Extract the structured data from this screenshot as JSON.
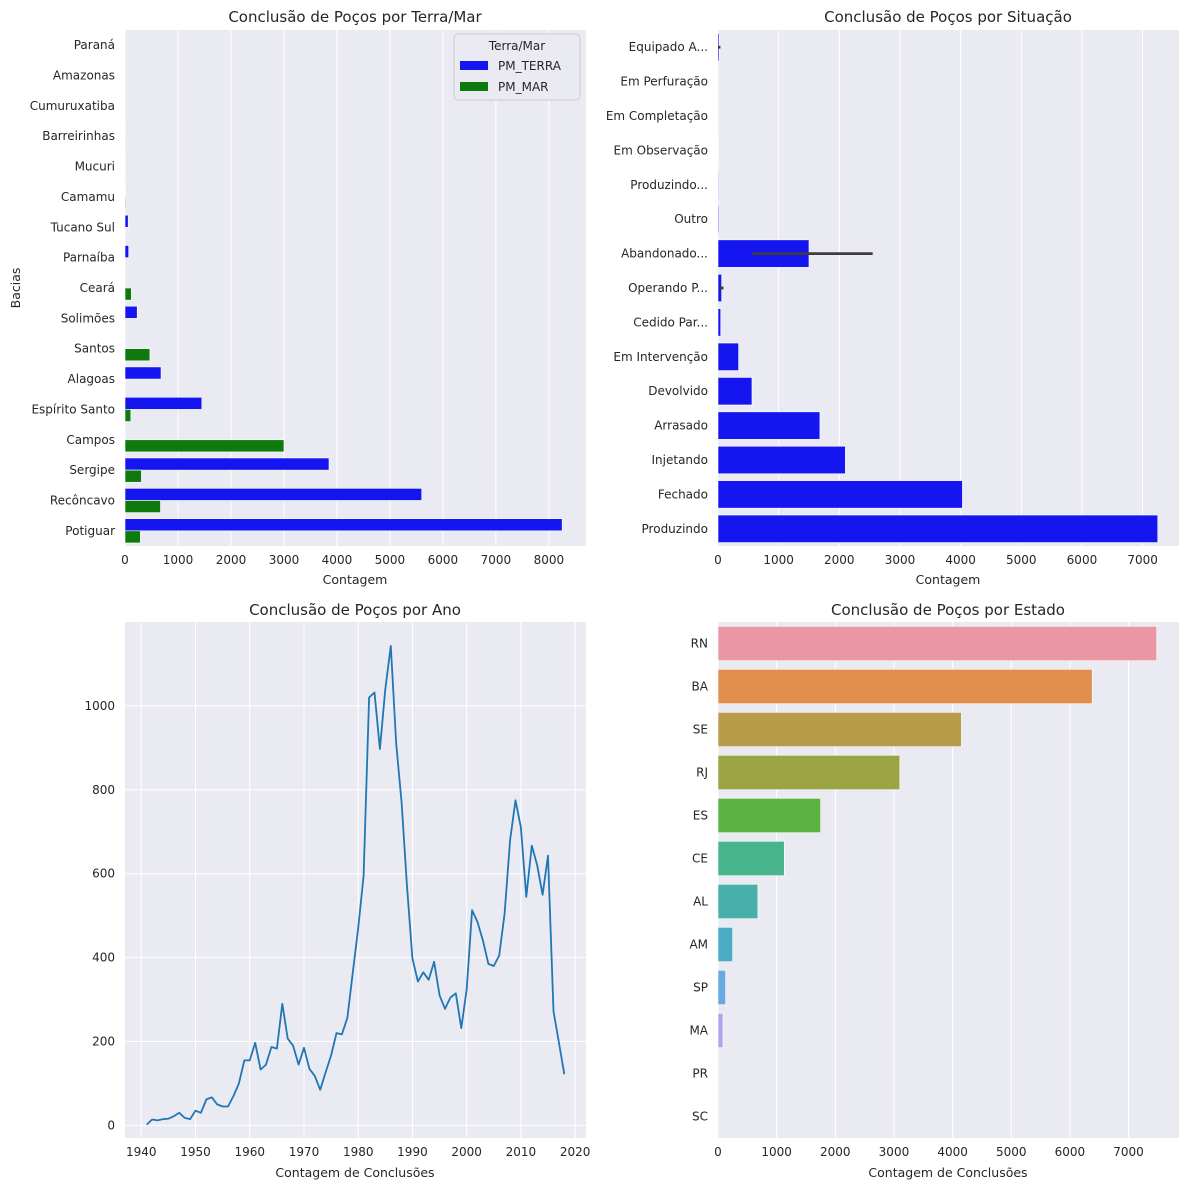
{
  "colors": {
    "terra": "#1515f0",
    "mar": "#0e7a0e",
    "situacao": "#1515f0",
    "errbar": "#3d3d3d",
    "line": "#1f77b4",
    "axes_bg": "#eaeaf2",
    "grid": "#ffffff"
  },
  "chart_data": [
    {
      "type": "bar",
      "orientation": "horizontal",
      "title": "Conclusão de Poços por Terra/Mar",
      "xlabel": "Contagem",
      "ylabel": "Bacias",
      "xlim": [
        0,
        8700
      ],
      "xticks": [
        0,
        1000,
        2000,
        3000,
        4000,
        5000,
        6000,
        7000,
        8000
      ],
      "grid": true,
      "legend": {
        "title": "Terra/Mar",
        "placement": "top-right"
      },
      "categories": [
        "Paraná",
        "Amazonas",
        "Cumuruxatiba",
        "Barreirinhas",
        "Mucuri",
        "Camamu",
        "Tucano Sul",
        "Parnaíba",
        "Ceará",
        "Solimões",
        "Santos",
        "Alagoas",
        "Espírito Santo",
        "Campos",
        "Sergipe",
        "Recôncavo",
        "Potiguar"
      ],
      "series": [
        {
          "name": "PM_TERRA",
          "values": [
            2,
            3,
            4,
            5,
            6,
            10,
            60,
            70,
            0,
            230,
            0,
            680,
            1450,
            0,
            3850,
            5600,
            8250
          ]
        },
        {
          "name": "PM_MAR",
          "values": [
            0,
            0,
            3,
            2,
            5,
            15,
            0,
            0,
            120,
            0,
            470,
            0,
            110,
            3000,
            310,
            670,
            290
          ]
        }
      ]
    },
    {
      "type": "bar",
      "orientation": "horizontal",
      "title": "Conclusão de Poços por Situação",
      "xlabel": "Contagem",
      "ylabel": "",
      "xlim": [
        0,
        7600
      ],
      "xticks": [
        0,
        1000,
        2000,
        3000,
        4000,
        5000,
        6000,
        7000
      ],
      "grid": true,
      "categories": [
        "Equipado A...",
        "Em Perfuração",
        "Em Completação",
        "Em Observação",
        "Produzindo...",
        "Outro",
        "Abandonado...",
        "Operando P...",
        "Cedido Par...",
        "Em Intervenção",
        "Devolvido",
        "Arrasado",
        "Injetando",
        "Fechado",
        "Produzindo"
      ],
      "values": [
        20,
        2,
        3,
        5,
        10,
        15,
        1500,
        60,
        45,
        340,
        560,
        1680,
        2100,
        4030,
        7250
      ],
      "error_bars": [
        [
          0,
          40
        ],
        null,
        null,
        null,
        null,
        null,
        [
          560,
          2550
        ],
        [
          30,
          90
        ],
        null,
        null,
        null,
        null,
        null,
        null,
        null
      ]
    },
    {
      "type": "line",
      "title": "Conclusão de Poços por Ano",
      "xlabel": "Contagem de Conclusões",
      "ylabel": "",
      "xlim": [
        1937,
        2022
      ],
      "ylim": [
        -30,
        1200
      ],
      "xticks": [
        1940,
        1950,
        1960,
        1970,
        1980,
        1990,
        2000,
        2010,
        2020
      ],
      "yticks": [
        0,
        200,
        400,
        600,
        800,
        1000
      ],
      "grid": true,
      "series": [
        {
          "x": [
            1941,
            1942,
            1943,
            1944,
            1945,
            1946,
            1947,
            1948,
            1949,
            1950,
            1951,
            1952,
            1953,
            1954,
            1955,
            1956,
            1957,
            1958,
            1959,
            1960,
            1961,
            1962,
            1963,
            1964,
            1965,
            1966,
            1967,
            1968,
            1969,
            1970,
            1971,
            1972,
            1973,
            1974,
            1975,
            1976,
            1977,
            1978,
            1979,
            1980,
            1981,
            1982,
            1983,
            1984,
            1985,
            1986,
            1987,
            1988,
            1989,
            1990,
            1991,
            1992,
            1993,
            1994,
            1995,
            1996,
            1997,
            1998,
            1999,
            2000,
            2001,
            2002,
            2003,
            2004,
            2005,
            2006,
            2007,
            2008,
            2009,
            2010,
            2011,
            2012,
            2013,
            2014,
            2015,
            2016,
            2017,
            2018
          ],
          "y": [
            2,
            14,
            12,
            15,
            16,
            22,
            30,
            18,
            15,
            35,
            30,
            62,
            67,
            50,
            45,
            45,
            70,
            100,
            155,
            155,
            197,
            133,
            145,
            187,
            183,
            290,
            207,
            190,
            145,
            185,
            135,
            118,
            85,
            127,
            167,
            220,
            217,
            257,
            365,
            470,
            595,
            1020,
            1032,
            897,
            1040,
            1143,
            910,
            770,
            570,
            398,
            343,
            365,
            347,
            390,
            310,
            278,
            305,
            315,
            232,
            325,
            513,
            485,
            440,
            385,
            380,
            405,
            505,
            680,
            775,
            710,
            545,
            667,
            620,
            550,
            643,
            272,
            198,
            122
          ]
        }
      ]
    },
    {
      "type": "bar",
      "orientation": "horizontal",
      "title": "Conclusão de Poços por Estado",
      "xlabel": "Contagem de Conclusões",
      "ylabel": "",
      "xlim": [
        0,
        7860
      ],
      "xticks": [
        0,
        1000,
        2000,
        3000,
        4000,
        5000,
        6000,
        7000
      ],
      "grid": true,
      "categories": [
        "RN",
        "BA",
        "SE",
        "RJ",
        "ES",
        "CE",
        "AL",
        "AM",
        "SP",
        "MA",
        "PR",
        "SC"
      ],
      "values": [
        7480,
        6380,
        4150,
        3100,
        1750,
        1130,
        680,
        250,
        130,
        85,
        2,
        1
      ],
      "colors": [
        "#ea96a3",
        "#e08f4f",
        "#b89c4a",
        "#9aa442",
        "#5cb342",
        "#48b48c",
        "#49afaa",
        "#4cabc5",
        "#68a9e0",
        "#b3a3ef",
        "#ee8cd5",
        "#f08bbb"
      ]
    }
  ]
}
